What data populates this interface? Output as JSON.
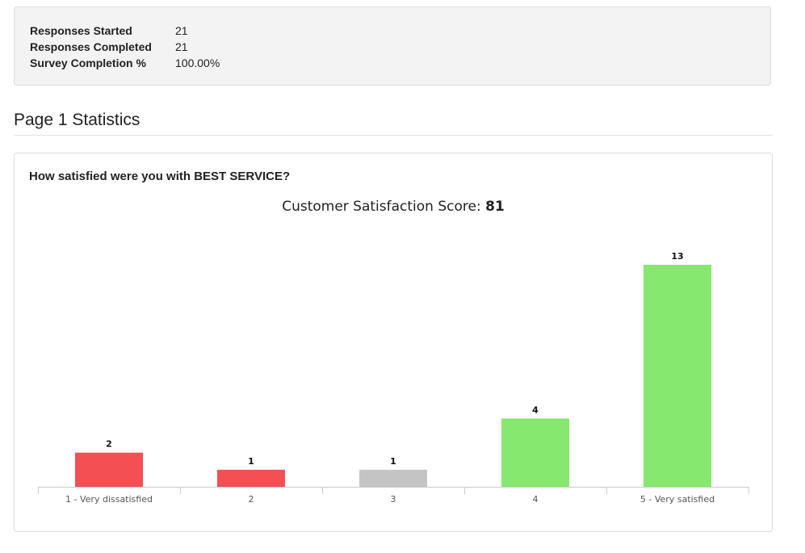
{
  "summary": {
    "rows": [
      {
        "label": "Responses Started",
        "value": "21"
      },
      {
        "label": "Responses Completed",
        "value": "21"
      },
      {
        "label": "Survey Completion %",
        "value": "100.00%"
      }
    ]
  },
  "page_heading": "Page 1 Statistics",
  "question": {
    "title": "How satisfied were you with BEST SERVICE?",
    "score_label": "Customer Satisfaction Score:",
    "score_value": "81"
  },
  "colors": {
    "dissatisfied": "#f44f53",
    "neutral": "#c4c4c4",
    "satisfied": "#86e86e",
    "axis": "#cccccc"
  },
  "chart_data": {
    "type": "bar",
    "title": "",
    "xlabel": "",
    "ylabel": "",
    "categories": [
      "1 - Very dissatisfied",
      "2",
      "3",
      "4",
      "5 - Very satisfied"
    ],
    "values": [
      2,
      1,
      1,
      4,
      13
    ],
    "bar_colors": [
      "#f44f53",
      "#f44f53",
      "#c4c4c4",
      "#86e86e",
      "#86e86e"
    ],
    "ylim": [
      0,
      13
    ],
    "grid": false,
    "legend": "none",
    "data_labels": true
  }
}
